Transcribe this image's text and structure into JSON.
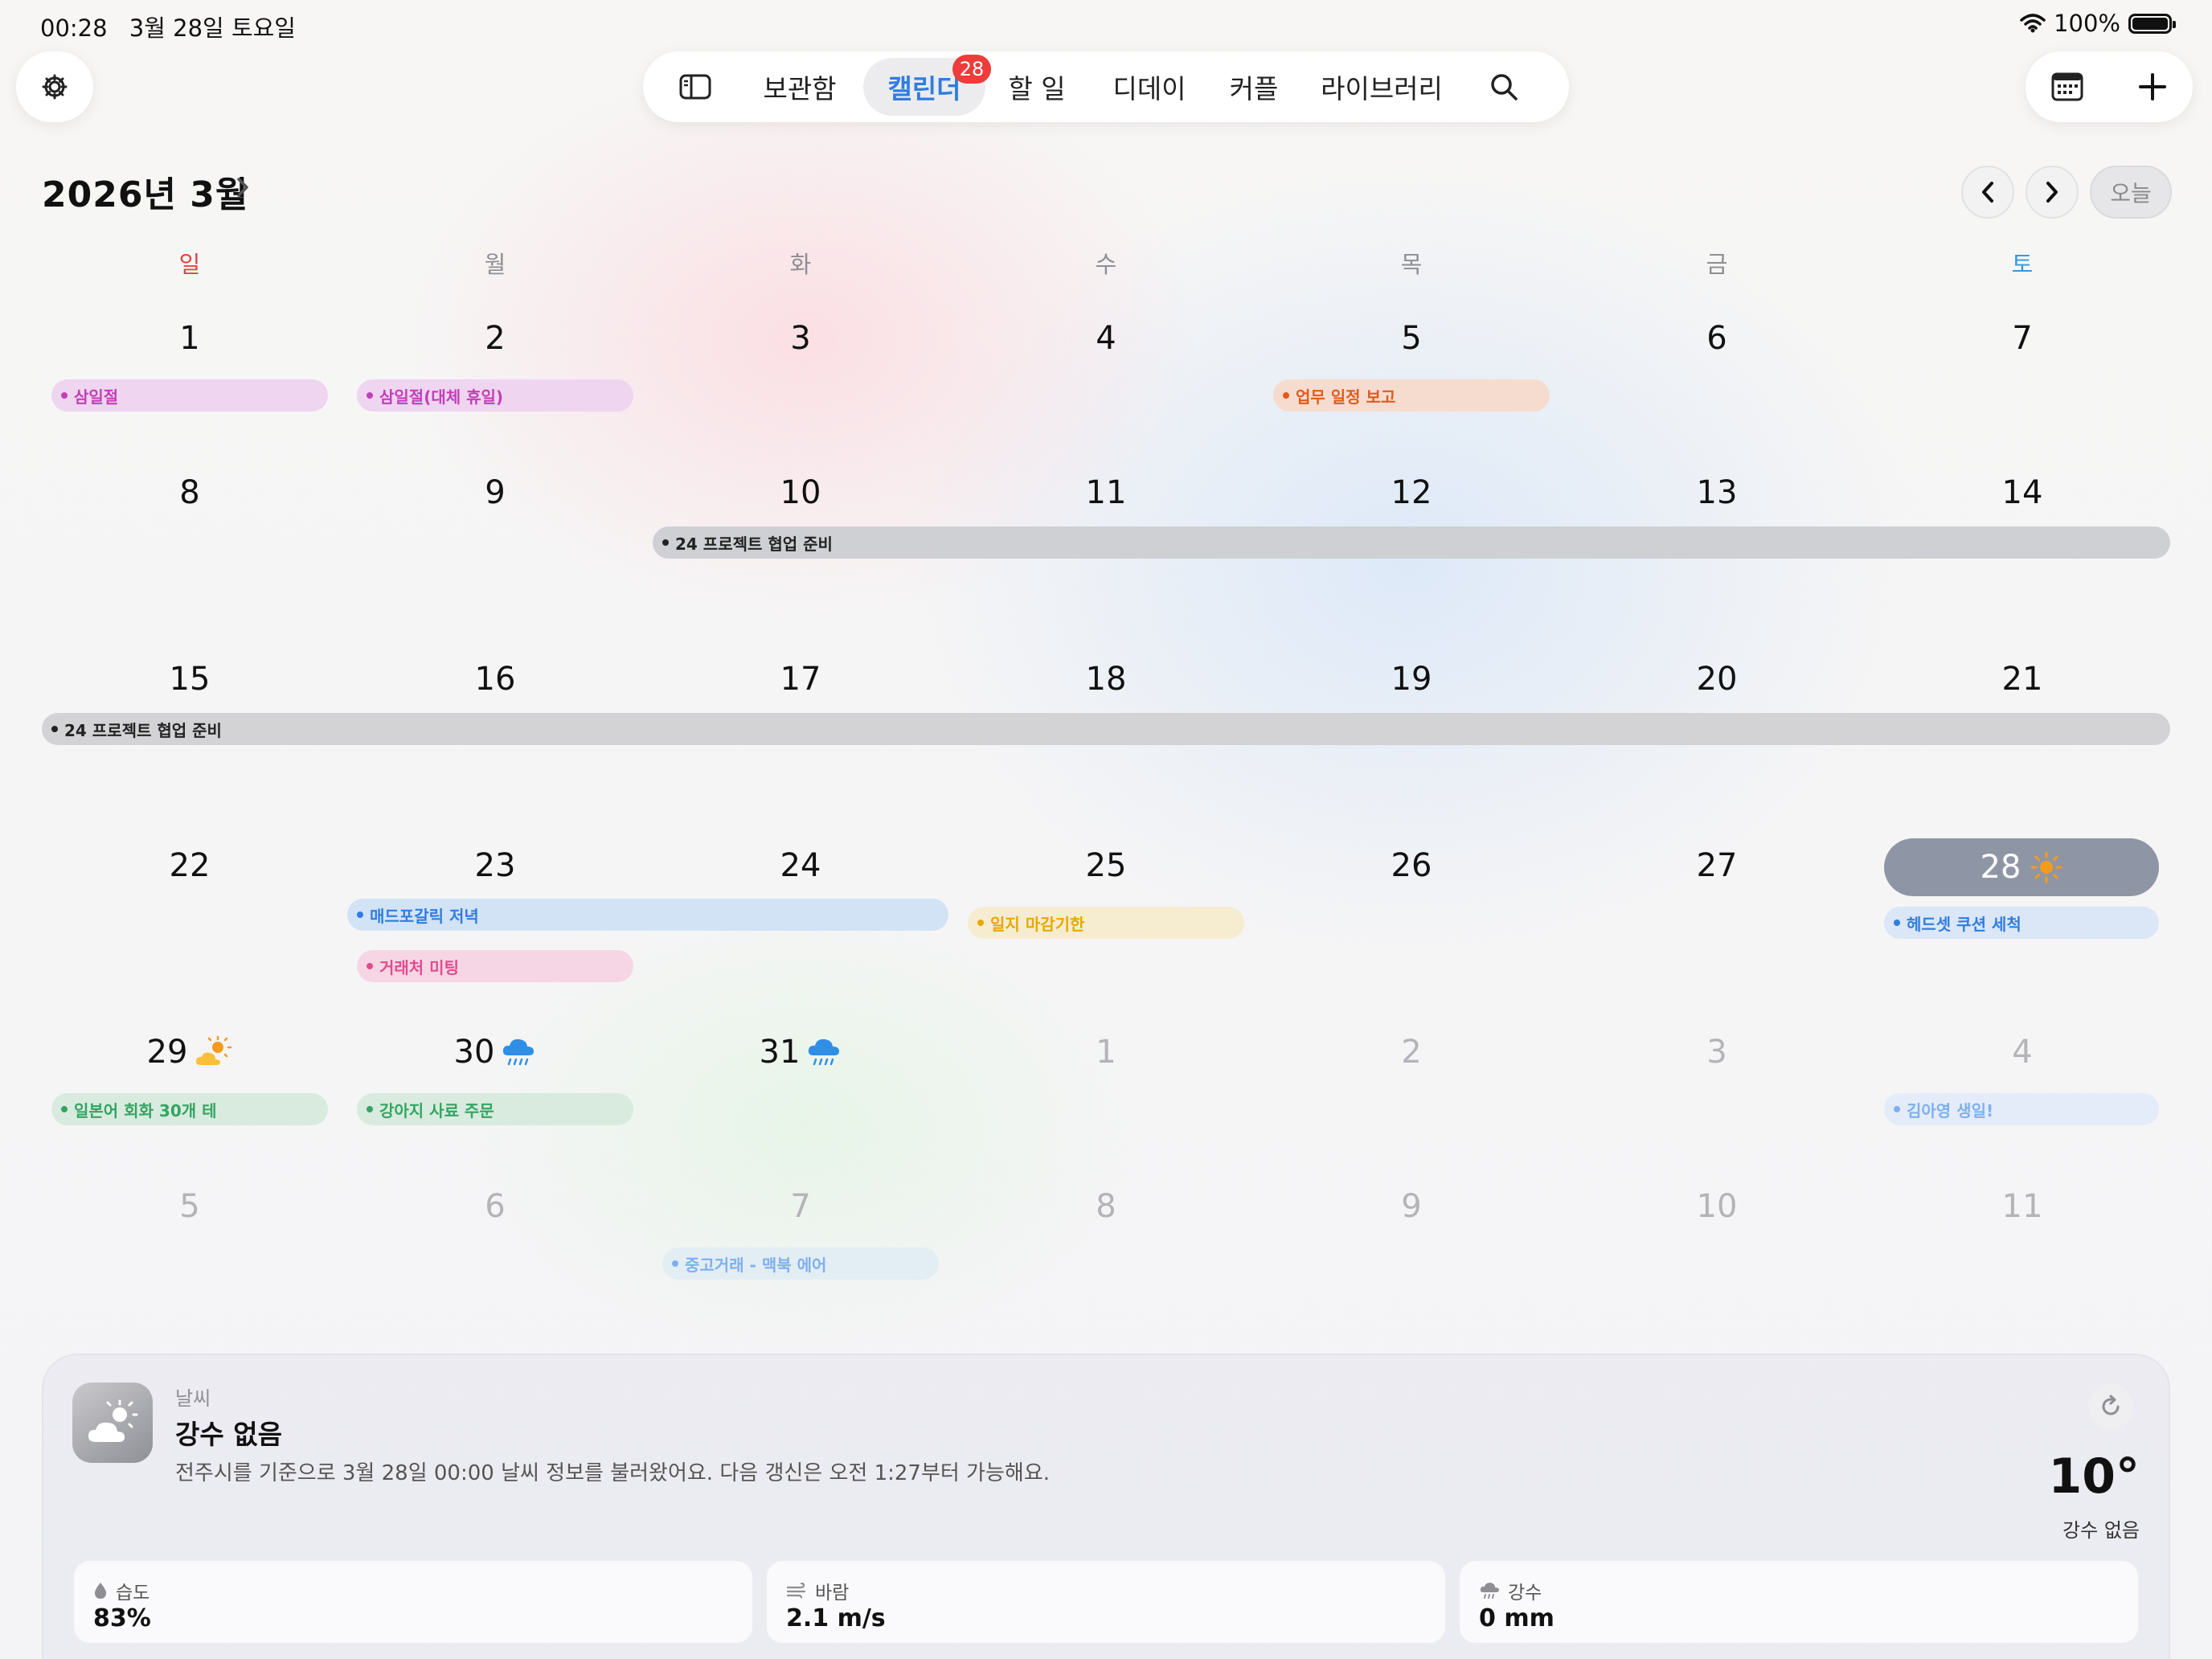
{
  "status_bar": {
    "time": "00:28",
    "date": "3월 28일 토요일",
    "battery": "100%"
  },
  "nav": {
    "items": [
      "보관함",
      "캘린더",
      "할 일",
      "디데이",
      "커플",
      "라이브러리"
    ],
    "active": "캘린더",
    "badge": "28"
  },
  "month": {
    "title": "2026년 3월",
    "today_label": "오늘"
  },
  "weekdays": [
    "일",
    "월",
    "화",
    "수",
    "목",
    "금",
    "토"
  ],
  "weeks": [
    [
      "1",
      "2",
      "3",
      "4",
      "5",
      "6",
      "7"
    ],
    [
      "8",
      "9",
      "10",
      "11",
      "12",
      "13",
      "14"
    ],
    [
      "15",
      "16",
      "17",
      "18",
      "19",
      "20",
      "21"
    ],
    [
      "22",
      "23",
      "24",
      "25",
      "26",
      "27",
      "28"
    ],
    [
      "29",
      "30",
      "31",
      "1",
      "2",
      "3",
      "4"
    ],
    [
      "5",
      "6",
      "7",
      "8",
      "9",
      "10",
      "11"
    ]
  ],
  "events": [
    {
      "title": "삼일절",
      "color": "#c23fb8",
      "bg": "#efd5ef"
    },
    {
      "title": "삼일절(대체 휴일)",
      "color": "#c23fb8",
      "bg": "#efd5ef"
    },
    {
      "title": "업무 일정 보고",
      "color": "#e25a1c",
      "bg": "#f6dccf"
    },
    {
      "title": "24 프로젝트 협업 준비",
      "color": "#222222",
      "bg": "#cfd0d4"
    },
    {
      "title": "24 프로젝트 협업 준비",
      "color": "#222222",
      "bg": "#d3d3d5"
    },
    {
      "title": "매드포갈릭 저녁",
      "color": "#2f7de1",
      "bg": "#d2e3f6"
    },
    {
      "title": "거래처 미팅",
      "color": "#e24b8f",
      "bg": "#f6d6e4"
    },
    {
      "title": "일지 마감기한",
      "color": "#e6a800",
      "bg": "#f6ecd0"
    },
    {
      "title": "헤드셋 쿠션 세척",
      "color": "#2f7de1",
      "bg": "#dbe6f6"
    },
    {
      "title": "일본어 회화 30개 테",
      "color": "#35a463",
      "bg": "#d8ebde"
    },
    {
      "title": "강아지 사료 주문",
      "color": "#35a463",
      "bg": "#d8ebde"
    },
    {
      "title": "김아영 생일!",
      "color": "#7fb0ee",
      "bg": "#e3ecf8"
    },
    {
      "title": "중고거래 - 맥북 에어",
      "color": "#7fb0ee",
      "bg": "#e2edf4"
    }
  ],
  "weather": {
    "section_label": "날씨",
    "title": "강수 없음",
    "description": "전주시를 기준으로 3월 28일 00:00 날씨 정보를 불러왔어요. 다음 갱신은 오전 1:27부터 가능해요.",
    "temperature": "10°",
    "temperature_label": "강수 없음",
    "metrics": [
      {
        "label": "습도",
        "value": "83%",
        "icon": "droplet-icon"
      },
      {
        "label": "바람",
        "value": "2.1 m/s",
        "icon": "wind-icon"
      },
      {
        "label": "강수",
        "value": "0 mm",
        "icon": "rain-cloud-icon"
      }
    ]
  },
  "colors": {
    "accent": "#2f7de1",
    "sunday": "#e0453f",
    "saturday": "#2f9be1",
    "badge": "#ee3b3b",
    "today_bg": "#8e96a6"
  }
}
